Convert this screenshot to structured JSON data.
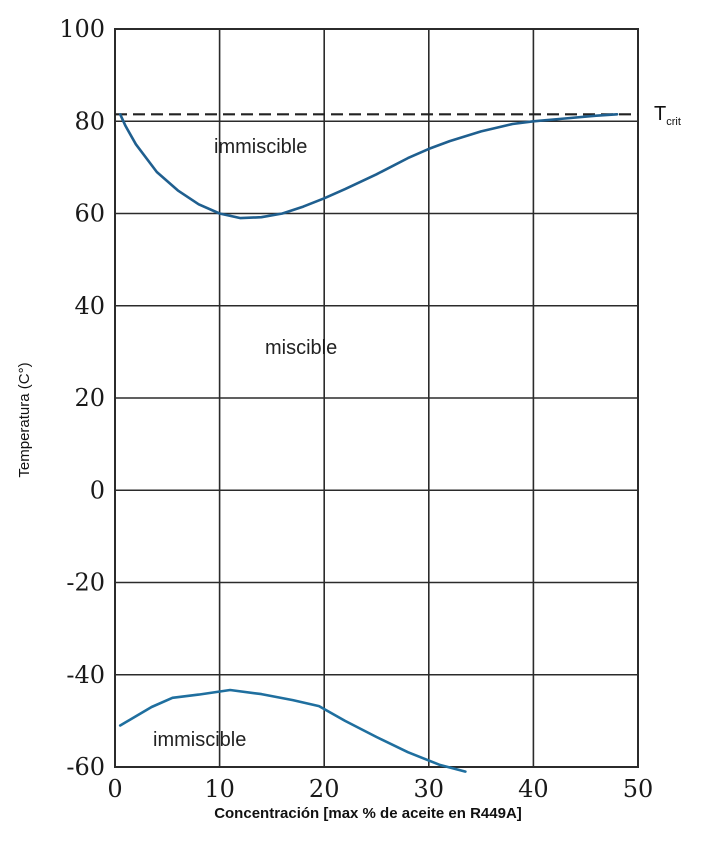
{
  "chart_data": {
    "type": "line",
    "title": "",
    "xlabel": "Concentración [max % de aceite en R449A]",
    "ylabel": "Temperatura (C°)",
    "xlim": [
      0,
      50
    ],
    "ylim": [
      -60,
      100
    ],
    "x_ticks": [
      "0",
      "10",
      "20",
      "30",
      "40",
      "50"
    ],
    "y_ticks": [
      "100",
      "80",
      "60",
      "40",
      "20",
      "0",
      "-20",
      "-40",
      "-60"
    ],
    "grid": true,
    "critical_temperature": {
      "label": "T",
      "subscript": "crit",
      "value": 81.5
    },
    "region_labels": [
      "immiscible",
      "miscible",
      "immiscible"
    ],
    "series": [
      {
        "color": "#1f5f8f",
        "points": [
          [
            0.5,
            81.5
          ],
          [
            1,
            79
          ],
          [
            2,
            75
          ],
          [
            4,
            69
          ],
          [
            6,
            65
          ],
          [
            8,
            62
          ],
          [
            10,
            60
          ],
          [
            12,
            59
          ],
          [
            14,
            59.2
          ],
          [
            16,
            60
          ],
          [
            18,
            61.5
          ],
          [
            20,
            63.3
          ],
          [
            22,
            65.3
          ],
          [
            25,
            68.5
          ],
          [
            28,
            72
          ],
          [
            30,
            74
          ],
          [
            32,
            75.7
          ],
          [
            35,
            77.8
          ],
          [
            38,
            79.4
          ],
          [
            40,
            80
          ],
          [
            43,
            80.6
          ],
          [
            46,
            81.2
          ],
          [
            48,
            81.5
          ]
        ]
      },
      {
        "color": "#1f6f9f",
        "points": [
          [
            0.5,
            -51
          ],
          [
            2,
            -49
          ],
          [
            3.5,
            -47
          ],
          [
            5.5,
            -45
          ],
          [
            8,
            -44.3
          ],
          [
            11,
            -43.3
          ],
          [
            14,
            -44.2
          ],
          [
            17,
            -45.5
          ],
          [
            19.5,
            -46.8
          ],
          [
            22,
            -50
          ],
          [
            25,
            -53.5
          ],
          [
            28,
            -56.8
          ],
          [
            31,
            -59.5
          ],
          [
            33.5,
            -61
          ]
        ]
      }
    ]
  }
}
